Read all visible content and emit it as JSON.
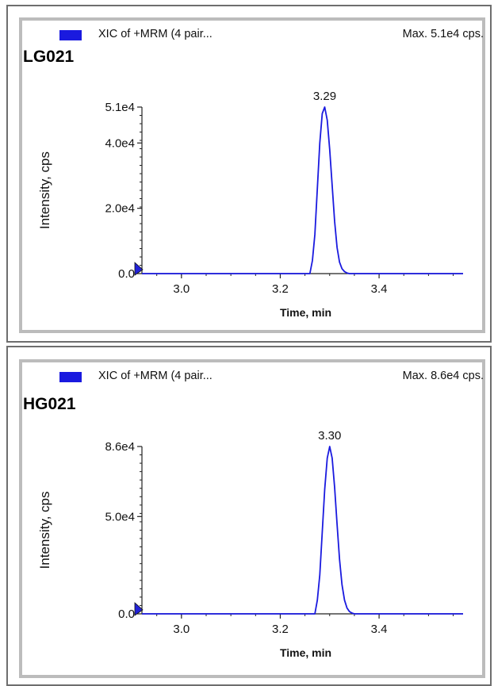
{
  "chart_data": [
    {
      "type": "line",
      "legend_label": "XIC of +MRM (4 pair...",
      "max_label": "Max. 5.1e4 cps.",
      "sample_label": "LG021",
      "xlabel": "Time, min",
      "ylabel": "Intensity, cps",
      "xlim": [
        2.92,
        3.57
      ],
      "ylim": [
        0,
        51000
      ],
      "x_ticks": [
        {
          "value": 3.0,
          "label": "3.0"
        },
        {
          "value": 3.2,
          "label": "3.2"
        },
        {
          "value": 3.4,
          "label": "3.4"
        }
      ],
      "y_ticks": [
        {
          "value": 0,
          "label": "0.0"
        },
        {
          "value": 20000,
          "label": "2.0e4"
        },
        {
          "value": 40000,
          "label": "4.0e4"
        },
        {
          "value": 51000,
          "label": "5.1e4"
        }
      ],
      "peak": {
        "x": 3.29,
        "y": 51000,
        "label": "3.29"
      },
      "series": [
        {
          "color": "#1a1adf",
          "x": [
            2.92,
            3.26,
            3.265,
            3.27,
            3.275,
            3.28,
            3.285,
            3.29,
            3.295,
            3.3,
            3.305,
            3.31,
            3.315,
            3.32,
            3.325,
            3.33,
            3.335,
            3.34,
            3.57
          ],
          "y": [
            0,
            0,
            4000,
            12000,
            26000,
            40000,
            49000,
            51000,
            47000,
            38000,
            27000,
            16000,
            8000,
            3500,
            1500,
            600,
            200,
            0,
            0
          ]
        }
      ]
    },
    {
      "type": "line",
      "legend_label": "XIC of +MRM (4 pair...",
      "max_label": "Max. 8.6e4 cps.",
      "sample_label": "HG021",
      "xlabel": "Time, min",
      "ylabel": "Intensity, cps",
      "xlim": [
        2.92,
        3.57
      ],
      "ylim": [
        0,
        86000
      ],
      "x_ticks": [
        {
          "value": 3.0,
          "label": "3.0"
        },
        {
          "value": 3.2,
          "label": "3.2"
        },
        {
          "value": 3.4,
          "label": "3.4"
        }
      ],
      "y_ticks": [
        {
          "value": 0,
          "label": "0.0"
        },
        {
          "value": 50000,
          "label": "5.0e4"
        },
        {
          "value": 86000,
          "label": "8.6e4"
        }
      ],
      "peak": {
        "x": 3.3,
        "y": 86000,
        "label": "3.30"
      },
      "series": [
        {
          "color": "#1a1adf",
          "x": [
            2.92,
            3.27,
            3.275,
            3.28,
            3.285,
            3.29,
            3.295,
            3.3,
            3.305,
            3.31,
            3.315,
            3.32,
            3.325,
            3.33,
            3.335,
            3.34,
            3.345,
            3.35,
            3.57
          ],
          "y": [
            0,
            0,
            7000,
            20000,
            42000,
            64000,
            80000,
            86000,
            80000,
            65000,
            46000,
            28000,
            15000,
            7000,
            3000,
            1200,
            400,
            0,
            0
          ]
        }
      ]
    }
  ]
}
